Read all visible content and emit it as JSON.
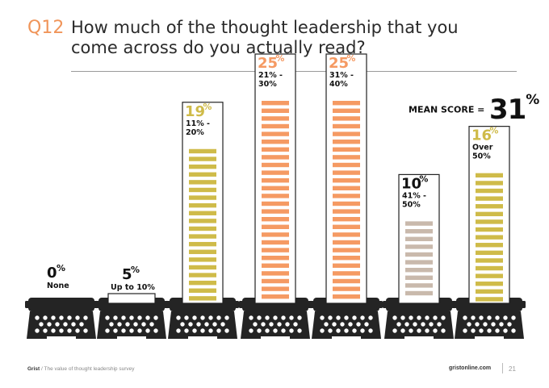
{
  "question": {
    "number": "Q12",
    "title": "How much of the thought leadership that you come across do you actually read?"
  },
  "mean_score": {
    "label": "MEAN SCORE =",
    "value": "31",
    "unit": "%"
  },
  "footer": {
    "brand": "Grist",
    "subtitle": "/ The value of thought leadership survey",
    "url": "gristonline.com",
    "page": "21"
  },
  "colors": {
    "orange": "#f59a63",
    "olive": "#cfbb49",
    "grey": "#c9b9ac",
    "dark": "#242424",
    "accent": "#f0955a"
  },
  "chart_data": {
    "type": "bar",
    "categories": [
      "None",
      "Up to 10%",
      "11% - 20%",
      "21% - 30%",
      "31% - 40%",
      "41% - 50%",
      "Over 50%"
    ],
    "values": [
      0,
      5,
      19,
      25,
      25,
      10,
      16
    ],
    "value_labels": [
      "0",
      "5",
      "19",
      "25",
      "25",
      "10",
      "16"
    ],
    "unit": "%",
    "category_lines": [
      [
        "None"
      ],
      [
        "Up to 10%"
      ],
      [
        "11% -",
        "20%"
      ],
      [
        "21% -",
        "30%"
      ],
      [
        "31% -",
        "40%"
      ],
      [
        "41% -",
        "50%"
      ],
      [
        "Over",
        "50%"
      ]
    ],
    "bar_colors": [
      "",
      "",
      "#cfbb49",
      "#f59a63",
      "#f59a63",
      "#c9b9ac",
      "#cfbb49"
    ],
    "value_colors": [
      "#111111",
      "#111111",
      "#cfbb49",
      "#f59a63",
      "#f59a63",
      "#111111",
      "#cfbb49"
    ],
    "ylim": [
      0,
      25
    ],
    "title": "",
    "xlabel": "",
    "ylabel": ""
  }
}
